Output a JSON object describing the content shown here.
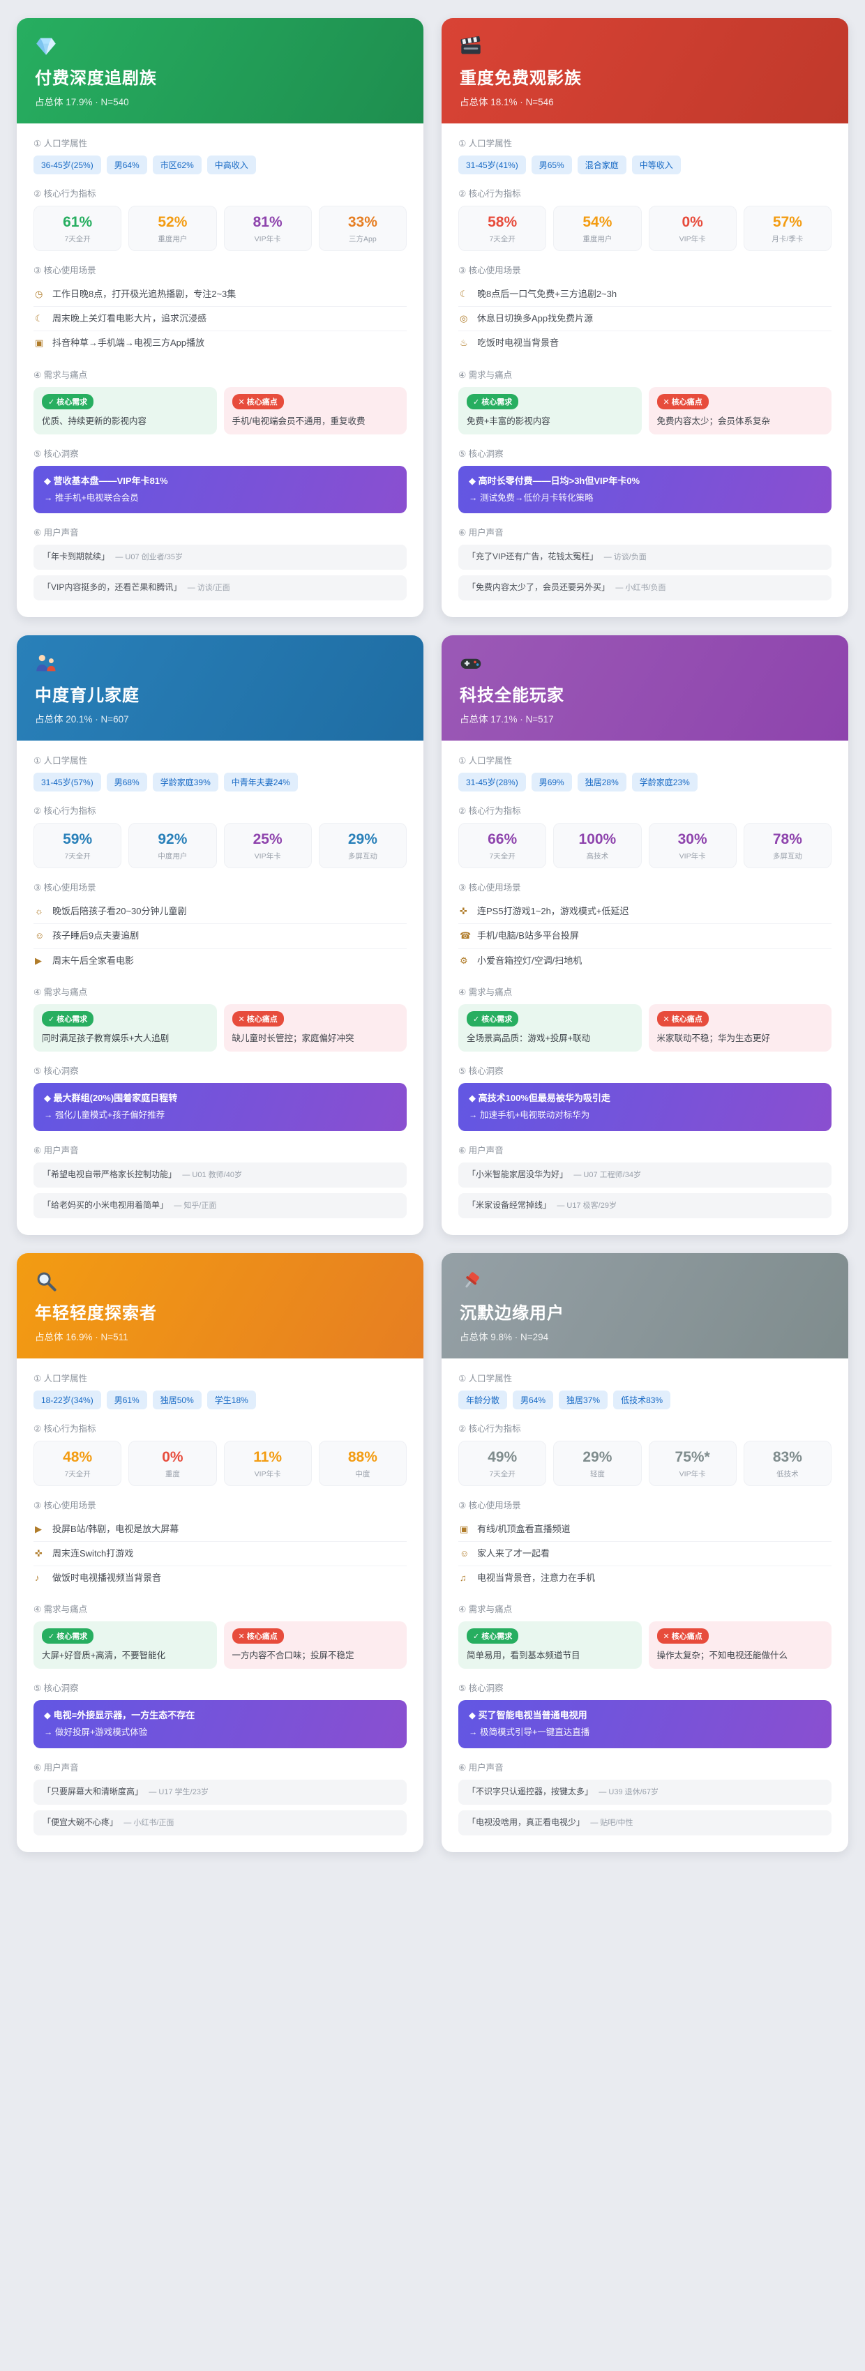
{
  "colors": {
    "page_bg": "#e9ebf0",
    "badge_bg": "#e1eefc",
    "badge_text": "#1769c4",
    "insight_from": "#6257e3",
    "insight_to": "#8a4fd0",
    "need_green": "#27ae60",
    "pain_red": "#e74c3c"
  },
  "sections": {
    "demographics": "① 人口学属性",
    "metrics": "② 核心行为指标",
    "scenarios": "③ 核心使用场景",
    "needs": "④ 需求与痛点",
    "insight": "⑤ 核心洞察",
    "voices": "⑥ 用户声音",
    "need_badge": "✓ 核心需求",
    "pain_badge": "✕ 核心痛点"
  },
  "cards": [
    {
      "icon": "gem",
      "title": "付费深度追剧族",
      "subtitle": "占总体 17.9% · N=540",
      "header_from": "#27ae60",
      "header_to": "#1e8e4f",
      "badges": [
        "36-45岁(25%)",
        "男64%",
        "市区62%",
        "中高收入"
      ],
      "metrics": [
        {
          "value": "61%",
          "label": "7天全开",
          "color": "#27ae60"
        },
        {
          "value": "52%",
          "label": "重度用户",
          "color": "#f39c12"
        },
        {
          "value": "81%",
          "label": "VIP年卡",
          "color": "#8e44ad"
        },
        {
          "value": "33%",
          "label": "三方App",
          "color": "#e67e22"
        }
      ],
      "scenarios": [
        {
          "icon": "◷",
          "text": "工作日晚8点，打开极光追热播剧，专注2~3集"
        },
        {
          "icon": "☾",
          "text": "周末晚上关灯看电影大片，追求沉浸感"
        },
        {
          "icon": "▣",
          "text": "抖音种草→手机端→电视三方App播放"
        }
      ],
      "need": "优质、持续更新的影视内容",
      "pain": "手机/电视端会员不通用，重复收费",
      "insight": {
        "line1": "◆ 营收基本盘——VIP年卡81%",
        "line2": "→ 推手机+电视联合会员"
      },
      "voices": [
        {
          "quote": "「年卡到期就续」",
          "source": "— U07 创业者/35岁"
        },
        {
          "quote": "「VIP内容挺多的，还看芒果和腾讯」",
          "source": "— 访谈/正面"
        }
      ]
    },
    {
      "icon": "clapper",
      "title": "重度免费观影族",
      "subtitle": "占总体 18.1% · N=546",
      "header_from": "#d94335",
      "header_to": "#c0392b",
      "badges": [
        "31-45岁(41%)",
        "男65%",
        "混合家庭",
        "中等收入"
      ],
      "metrics": [
        {
          "value": "58%",
          "label": "7天全开",
          "color": "#e74c3c"
        },
        {
          "value": "54%",
          "label": "重度用户",
          "color": "#f39c12"
        },
        {
          "value": "0%",
          "label": "VIP年卡",
          "color": "#e74c3c"
        },
        {
          "value": "57%",
          "label": "月卡/季卡",
          "color": "#f39c12"
        }
      ],
      "scenarios": [
        {
          "icon": "☾",
          "text": "晚8点后一口气免费+三方追剧2~3h"
        },
        {
          "icon": "◎",
          "text": "休息日切换多App找免费片源"
        },
        {
          "icon": "♨",
          "text": "吃饭时电视当背景音"
        }
      ],
      "need": "免费+丰富的影视内容",
      "pain": "免费内容太少；会员体系复杂",
      "insight": {
        "line1": "◆ 高时长零付费——日均>3h但VIP年卡0%",
        "line2": "→ 测试免费→低价月卡转化策略"
      },
      "voices": [
        {
          "quote": "「充了VIP还有广告，花钱太冤枉」",
          "source": "— 访谈/负面"
        },
        {
          "quote": "「免费内容太少了，会员还要另外买」",
          "source": "— 小红书/负面"
        }
      ]
    },
    {
      "icon": "family",
      "title": "中度育儿家庭",
      "subtitle": "占总体 20.1% · N=607",
      "header_from": "#2980b9",
      "header_to": "#1f6da3",
      "badges": [
        "31-45岁(57%)",
        "男68%",
        "学龄家庭39%",
        "中青年夫妻24%"
      ],
      "metrics": [
        {
          "value": "59%",
          "label": "7天全开",
          "color": "#2980b9"
        },
        {
          "value": "92%",
          "label": "中度用户",
          "color": "#2980b9"
        },
        {
          "value": "25%",
          "label": "VIP年卡",
          "color": "#8e44ad"
        },
        {
          "value": "29%",
          "label": "多屏互动",
          "color": "#2980b9"
        }
      ],
      "scenarios": [
        {
          "icon": "☼",
          "text": "晚饭后陪孩子看20~30分钟儿童剧"
        },
        {
          "icon": "☺",
          "text": "孩子睡后9点夫妻追剧"
        },
        {
          "icon": "▶",
          "text": "周末午后全家看电影"
        }
      ],
      "need": "同时满足孩子教育娱乐+大人追剧",
      "pain": "缺儿童时长管控；家庭偏好冲突",
      "insight": {
        "line1": "◆ 最大群组(20%)围着家庭日程转",
        "line2": "→ 强化儿童模式+孩子偏好推荐"
      },
      "voices": [
        {
          "quote": "「希望电视自带严格家长控制功能」",
          "source": "— U01 教师/40岁"
        },
        {
          "quote": "「给老妈买的小米电视用着简单」",
          "source": "— 知乎/正面"
        }
      ]
    },
    {
      "icon": "gamepad",
      "title": "科技全能玩家",
      "subtitle": "占总体 17.1% · N=517",
      "header_from": "#9b59b6",
      "header_to": "#8e44ad",
      "badges": [
        "31-45岁(28%)",
        "男69%",
        "独居28%",
        "学龄家庭23%"
      ],
      "metrics": [
        {
          "value": "66%",
          "label": "7天全开",
          "color": "#8e44ad"
        },
        {
          "value": "100%",
          "label": "高技术",
          "color": "#8e44ad"
        },
        {
          "value": "30%",
          "label": "VIP年卡",
          "color": "#8e44ad"
        },
        {
          "value": "78%",
          "label": "多屏互动",
          "color": "#8e44ad"
        }
      ],
      "scenarios": [
        {
          "icon": "✜",
          "text": "连PS5打游戏1~2h，游戏模式+低延迟"
        },
        {
          "icon": "☎",
          "text": "手机/电脑/B站多平台投屏"
        },
        {
          "icon": "⚙",
          "text": "小爱音箱控灯/空调/扫地机"
        }
      ],
      "need": "全场景高品质：游戏+投屏+联动",
      "pain": "米家联动不稳；华为生态更好",
      "insight": {
        "line1": "◆ 高技术100%但最易被华为吸引走",
        "line2": "→ 加速手机+电视联动对标华为"
      },
      "voices": [
        {
          "quote": "「小米智能家居没华为好」",
          "source": "— U07 工程师/34岁"
        },
        {
          "quote": "「米家设备经常掉线」",
          "source": "— U17 极客/29岁"
        }
      ]
    },
    {
      "icon": "magnifier",
      "title": "年轻轻度探索者",
      "subtitle": "占总体 16.9% · N=511",
      "header_from": "#f39c12",
      "header_to": "#e67e22",
      "badges": [
        "18-22岁(34%)",
        "男61%",
        "独居50%",
        "学生18%"
      ],
      "metrics": [
        {
          "value": "48%",
          "label": "7天全开",
          "color": "#f39c12"
        },
        {
          "value": "0%",
          "label": "重度",
          "color": "#e74c3c"
        },
        {
          "value": "11%",
          "label": "VIP年卡",
          "color": "#f39c12"
        },
        {
          "value": "88%",
          "label": "中度",
          "color": "#f39c12"
        }
      ],
      "scenarios": [
        {
          "icon": "▶",
          "text": "投屏B站/韩剧，电视是放大屏幕"
        },
        {
          "icon": "✜",
          "text": "周末连Switch打游戏"
        },
        {
          "icon": "♪",
          "text": "做饭时电视播视频当背景音"
        }
      ],
      "need": "大屏+好音质+高清，不要智能化",
      "pain": "一方内容不合口味；投屏不稳定",
      "insight": {
        "line1": "◆ 电视=外接显示器，一方生态不存在",
        "line2": "→ 做好投屏+游戏模式体验"
      },
      "voices": [
        {
          "quote": "「只要屏幕大和清晰度高」",
          "source": "— U17 学生/23岁"
        },
        {
          "quote": "「便宜大碗不心疼」",
          "source": "— 小红书/正面"
        }
      ]
    },
    {
      "icon": "pin",
      "title": "沉默边缘用户",
      "subtitle": "占总体 9.8% · N=294",
      "header_from": "#95a0a6",
      "header_to": "#7f8c8d",
      "badges": [
        "年龄分散",
        "男64%",
        "独居37%",
        "低技术83%"
      ],
      "metrics": [
        {
          "value": "49%",
          "label": "7天全开",
          "color": "#7f8c8d"
        },
        {
          "value": "29%",
          "label": "轻度",
          "color": "#7f8c8d"
        },
        {
          "value": "75%*",
          "label": "VIP年卡",
          "color": "#7f8c8d"
        },
        {
          "value": "83%",
          "label": "低技术",
          "color": "#7f8c8d"
        }
      ],
      "scenarios": [
        {
          "icon": "▣",
          "text": "有线/机顶盒看直播频道"
        },
        {
          "icon": "☺",
          "text": "家人来了才一起看"
        },
        {
          "icon": "♫",
          "text": "电视当背景音，注意力在手机"
        }
      ],
      "need": "简单易用，看到基本频道节目",
      "pain": "操作太复杂；不知电视还能做什么",
      "insight": {
        "line1": "◆ 买了智能电视当普通电视用",
        "line2": "→ 极简模式引导+一键直达直播"
      },
      "voices": [
        {
          "quote": "「不识字只认遥控器，按键太多」",
          "source": "— U39 退休/67岁"
        },
        {
          "quote": "「电视没啥用，真正看电视少」",
          "source": "— 贴吧/中性"
        }
      ]
    }
  ]
}
